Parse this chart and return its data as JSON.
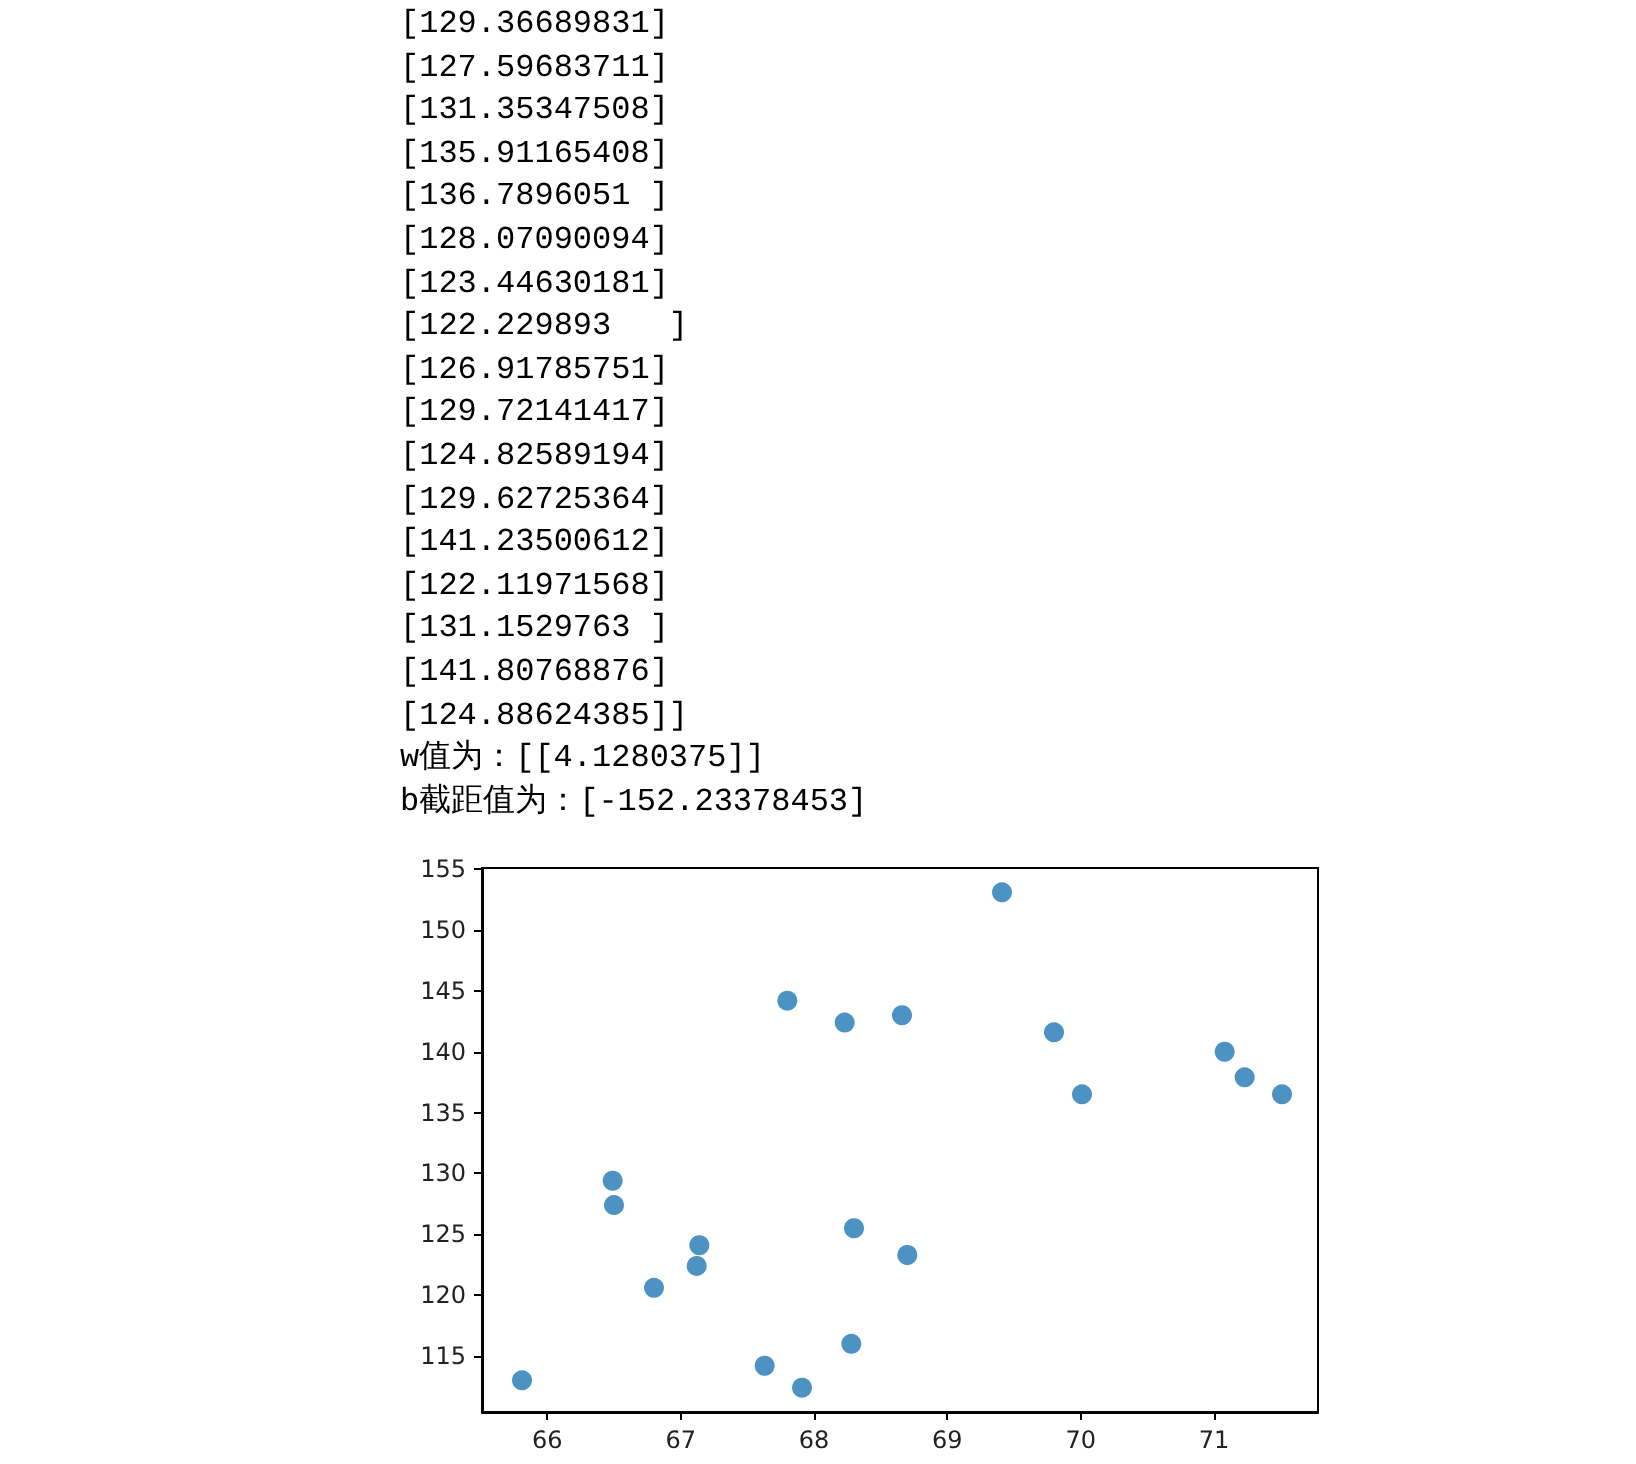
{
  "chart_data": {
    "type": "scatter",
    "annotations": [
      "[129.36689831]",
      "[127.59683711]",
      "[131.35347508]",
      "[135.91165408]",
      "[136.7896051 ]",
      "[128.07090094]",
      "[123.44630181]",
      "[122.229893   ]",
      "[126.91785751]",
      "[129.72141417]",
      "[124.82589194]",
      "[129.62725364]",
      "[141.23500612]",
      "[122.11971568]",
      "[131.1529763 ]",
      "[141.80768876]",
      "[124.88624385]]",
      "w值为：[[4.1280375]]",
      "b截距值为：[-152.23378453]"
    ],
    "x": [
      65.81,
      66.49,
      66.5,
      66.8,
      67.12,
      67.14,
      67.63,
      67.91,
      67.8,
      68.23,
      68.66,
      68.3,
      68.28,
      68.7,
      69.41,
      69.8,
      70.01,
      71.08,
      71.23,
      71.51
    ],
    "values": [
      113.0,
      129.4,
      127.4,
      120.6,
      122.4,
      124.1,
      114.2,
      112.4,
      144.2,
      142.4,
      143.0,
      125.5,
      116.0,
      123.3,
      153.1,
      141.6,
      136.5,
      140.0,
      137.9,
      136.5
    ],
    "color": "#1f77b4",
    "marker": "circle",
    "xlim": [
      65.51,
      71.78
    ],
    "xticks": [
      66,
      67,
      68,
      69,
      70,
      71
    ],
    "ylim": [
      110.4,
      155.1
    ],
    "yticks": [
      115,
      120,
      125,
      130,
      135,
      140,
      145,
      150,
      155
    ],
    "grid": false
  }
}
